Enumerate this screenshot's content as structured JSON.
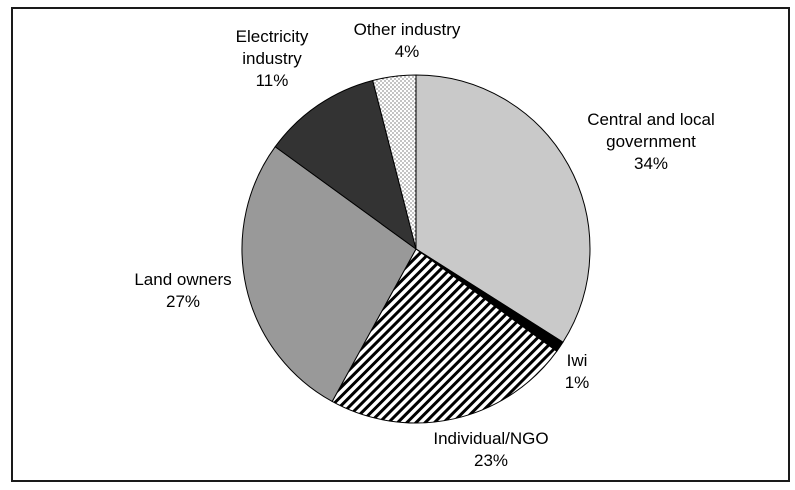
{
  "figure": {
    "background_color": "#ffffff",
    "frame_border_color": "#1a1a1a",
    "text_color": "#000000"
  },
  "chart_data": {
    "type": "pie",
    "title": "",
    "legend": "none",
    "labels_position": "outside",
    "start_angle_deg": 0,
    "direction": "clockwise",
    "total": 100,
    "slices": [
      {
        "label": "Central and local government",
        "value": 34,
        "pct": "34%",
        "fill": "#c9c9c9"
      },
      {
        "label": "Iwi",
        "value": 1,
        "pct": "1%",
        "fill": "#000000"
      },
      {
        "label": "Individual/NGO",
        "value": 23,
        "pct": "23%",
        "fill": "pattern:diagonal-stripes"
      },
      {
        "label": "Land owners",
        "value": 27,
        "pct": "27%",
        "fill": "#999999"
      },
      {
        "label": "Electricity industry",
        "value": 11,
        "pct": "11%",
        "fill": "#333333"
      },
      {
        "label": "Other industry",
        "value": 4,
        "pct": "4%",
        "fill": "pattern:dots"
      }
    ],
    "patterns": {
      "stripes": {
        "fg": "#000000",
        "bg": "#ffffff",
        "angle_deg": 45
      },
      "dots": {
        "fg": "#474747",
        "bg": "#ffffff"
      }
    },
    "slice_outline_color": "#000000"
  }
}
